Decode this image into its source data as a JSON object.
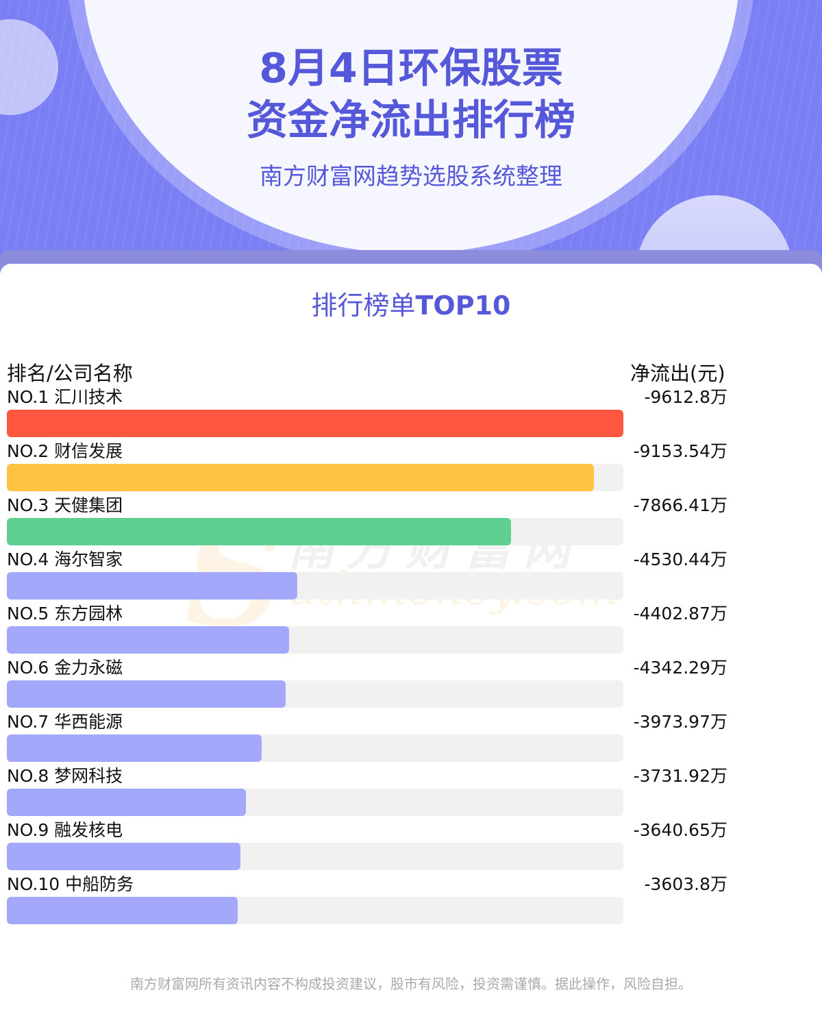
{
  "header": {
    "title_line1": "8月4日环保股票",
    "title_line2": "资金净流出排行榜",
    "subtitle": "南方财富网趋势选股系统整理"
  },
  "section": {
    "title_cn": "排行榜单",
    "title_en": "TOP10"
  },
  "columns": {
    "left": "排名/公司名称",
    "right": "净流出(元)"
  },
  "watermark": {
    "cn": "南方财富网",
    "en": "uthmoney.com",
    "s": "S"
  },
  "colors": {
    "accent": "#5558d8",
    "rank1": "#ff5640",
    "rank2": "#ffc343",
    "rank3": "#60cf92",
    "others": "#a4a8fb",
    "track": "#f1f1f1"
  },
  "chart_data": {
    "type": "bar",
    "orientation": "horizontal",
    "title": "8月4日环保股票资金净流出排行榜",
    "categories": [
      "NO.1 汇川技术",
      "NO.2 财信发展",
      "NO.3 天健集团",
      "NO.4 海尔智家",
      "NO.5 东方园林",
      "NO.6 金力永磁",
      "NO.7 华西能源",
      "NO.8 梦网科技",
      "NO.9 融发核电",
      "NO.10 中船防务"
    ],
    "values": [
      -9612.8,
      -9153.54,
      -7866.41,
      -4530.44,
      -4402.87,
      -4342.29,
      -3973.97,
      -3731.92,
      -3640.65,
      -3603.8
    ],
    "value_labels": [
      "-9612.8万",
      "-9153.54万",
      "-7866.41万",
      "-4530.44万",
      "-4402.87万",
      "-4342.29万",
      "-3973.97万",
      "-3731.92万",
      "-3640.65万",
      "-3603.8万"
    ],
    "unit": "万"
  },
  "footer": "南方财富网所有资讯内容不构成投资建议，股市有风险，投资需谨慎。据此操作，风险自担。"
}
